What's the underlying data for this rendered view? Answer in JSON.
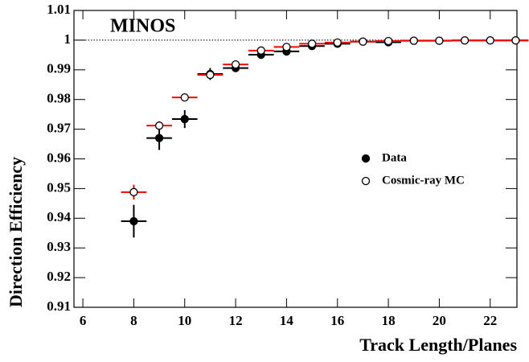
{
  "chart_data": {
    "type": "scatter",
    "title": "MINOS",
    "x_label": "Track Length/Planes",
    "y_label": "Direction Efficiency",
    "xlim": [
      5.65,
      23.05
    ],
    "ylim": [
      0.91,
      1.01
    ],
    "xticks": [
      6,
      8,
      10,
      12,
      14,
      16,
      18,
      20,
      22
    ],
    "yticks": [
      0.91,
      0.92,
      0.93,
      0.94,
      0.95,
      0.96,
      0.97,
      0.98,
      0.99,
      1,
      1.01
    ],
    "reference_line": 1,
    "legend": "right",
    "x": [
      8,
      9,
      10,
      11,
      12,
      13,
      14,
      15,
      16,
      17,
      18,
      19,
      20,
      21,
      22,
      23
    ],
    "series": [
      {
        "name": "Data",
        "color": "#000000",
        "error_color": "#000000",
        "filled": true,
        "xerr": 0.5,
        "values": [
          0.939,
          0.967,
          0.9734,
          0.9886,
          0.9906,
          0.9951,
          0.9962,
          0.998,
          0.9988,
          0.9995,
          0.9993,
          0.9998,
          0.9998,
          0.9999,
          0.9999,
          0.9999
        ],
        "errors": [
          0.0055,
          0.004,
          0.003,
          0.002,
          0.0012,
          0.0008,
          0.0007,
          0.0005,
          0.0004,
          0.0003,
          0.0003,
          0.0002,
          0.0002,
          0.0002,
          0.0002,
          0.0001
        ]
      },
      {
        "name": "Cosmic-ray MC",
        "color": "#000000",
        "error_color": "#ff0000",
        "filled": false,
        "xerr": 0.5,
        "values": [
          0.9488,
          0.9712,
          0.9807,
          0.9883,
          0.9918,
          0.9965,
          0.9977,
          0.9988,
          0.9992,
          0.9995,
          0.9997,
          0.9998,
          0.9998,
          0.9999,
          0.9999,
          0.9999
        ],
        "errors": [
          0.0025,
          0.0015,
          0.001,
          0.0012,
          0.0008,
          0.0005,
          0.0004,
          0.0003,
          0.0003,
          0.0002,
          0.0002,
          0.0001,
          0.0001,
          0.0001,
          0.0001,
          0.0001
        ]
      }
    ]
  }
}
